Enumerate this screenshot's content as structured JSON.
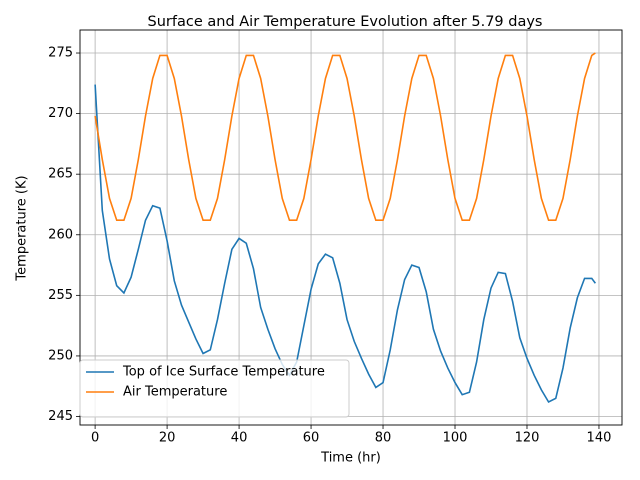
{
  "chart_data": {
    "type": "line",
    "title": "Surface and Air Temperature Evolution after 5.79 days",
    "xlabel": "Time (hr)",
    "ylabel": "Temperature (K)",
    "x": [
      0,
      2,
      4,
      6,
      8,
      10,
      12,
      14,
      16,
      18,
      20,
      22,
      24,
      26,
      28,
      30,
      32,
      34,
      36,
      38,
      40,
      42,
      44,
      46,
      48,
      50,
      52,
      54,
      56,
      58,
      60,
      62,
      64,
      66,
      68,
      70,
      72,
      74,
      76,
      78,
      80,
      82,
      84,
      86,
      88,
      90,
      92,
      94,
      96,
      98,
      100,
      102,
      104,
      106,
      108,
      110,
      112,
      114,
      116,
      118,
      120,
      122,
      124,
      126,
      128,
      130,
      132,
      134,
      136,
      138,
      139
    ],
    "series": [
      {
        "name": "Top of Ice Surface Temperature",
        "color": "#1f77b4",
        "values": [
          272.4,
          262,
          258,
          255.8,
          255.2,
          256.5,
          258.8,
          261.2,
          262.4,
          262.2,
          259.5,
          256.2,
          254.2,
          252.8,
          251.4,
          250.2,
          250.5,
          253,
          256,
          258.8,
          259.7,
          259.3,
          257.2,
          254,
          252.2,
          250.6,
          249.3,
          248.4,
          249.5,
          252.5,
          255.5,
          257.6,
          258.4,
          258.1,
          256,
          253,
          251.2,
          249.8,
          248.5,
          247.4,
          247.8,
          250.5,
          253.8,
          256.3,
          257.5,
          257.3,
          255.3,
          252.2,
          250.4,
          249,
          247.8,
          246.8,
          247,
          249.5,
          253,
          255.6,
          256.9,
          256.8,
          254.5,
          251.5,
          249.8,
          248.4,
          247.2,
          246.2,
          246.5,
          249,
          252.3,
          254.8,
          256.4,
          256.4,
          256.0
        ]
      },
      {
        "name": "Air Temperature",
        "color": "#ff7f0e",
        "values": [
          269.8,
          266.2,
          263.0,
          261.2,
          261.2,
          263.0,
          266.2,
          269.8,
          272.9,
          274.8,
          274.8,
          272.9,
          269.8,
          266.2,
          263.0,
          261.2,
          261.2,
          263.0,
          266.2,
          269.8,
          272.9,
          274.8,
          274.8,
          272.9,
          269.8,
          266.2,
          263.0,
          261.2,
          261.2,
          263.0,
          266.2,
          269.8,
          272.9,
          274.8,
          274.8,
          272.9,
          269.8,
          266.2,
          263.0,
          261.2,
          261.2,
          263.0,
          266.2,
          269.8,
          272.9,
          274.8,
          274.8,
          272.9,
          269.8,
          266.2,
          263.0,
          261.2,
          261.2,
          263.0,
          266.2,
          269.8,
          272.9,
          274.8,
          274.8,
          272.9,
          269.8,
          266.2,
          263.0,
          261.2,
          261.2,
          263.0,
          266.2,
          269.8,
          272.9,
          274.8,
          275.0
        ]
      }
    ],
    "xlim": [
      -4.2,
      146.4
    ],
    "ylim": [
      244.3,
      276.9
    ],
    "xticks": [
      0,
      20,
      40,
      60,
      80,
      100,
      120,
      140
    ],
    "yticks": [
      245,
      250,
      255,
      260,
      265,
      270,
      275
    ],
    "grid": true,
    "legend": "lower left"
  }
}
